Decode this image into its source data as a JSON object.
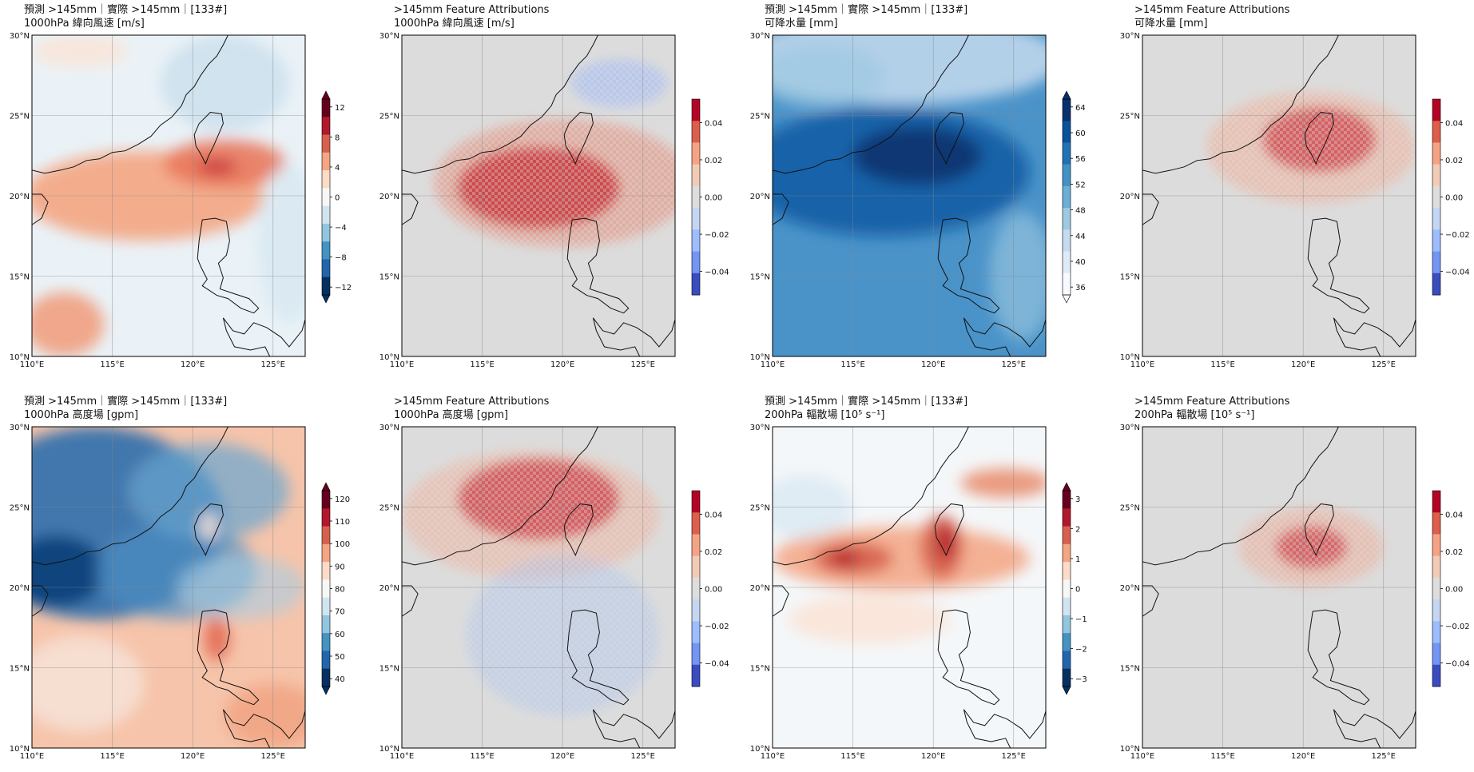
{
  "chart_data": [
    {
      "type": "heatmap",
      "title_line1": "預測 >145mm｜實際 >145mm｜[133#]",
      "title_line2": "1000hPa 緯向風速 [m/s]",
      "x_ticks": [
        "110°E",
        "115°E",
        "120°E",
        "125°E"
      ],
      "y_ticks": [
        "10°N",
        "15°N",
        "20°N",
        "25°N",
        "30°N"
      ],
      "xlim": [
        110,
        127
      ],
      "ylim": [
        10,
        30
      ],
      "colorbar_ticks": [
        "12",
        "8",
        "4",
        "0",
        "−4",
        "−8",
        "−12"
      ],
      "colormap": "RdBu_r",
      "background": "#eaf2f7",
      "blobs": [
        {
          "x": 117,
          "y": 20,
          "rx": 7.5,
          "ry": 2.8,
          "color": "#f4a582",
          "o": 0.9
        },
        {
          "x": 122,
          "y": 22,
          "rx": 3.8,
          "ry": 1.5,
          "color": "#e9785d",
          "o": 0.9
        },
        {
          "x": 121.5,
          "y": 21.8,
          "rx": 1.2,
          "ry": 0.5,
          "color": "#c93a3e",
          "o": 0.95
        },
        {
          "x": 112,
          "y": 12,
          "rx": 2.5,
          "ry": 2,
          "color": "#f1a07f",
          "o": 0.9
        },
        {
          "x": 122,
          "y": 27,
          "rx": 4,
          "ry": 3,
          "color": "#c9dfec",
          "o": 0.8
        },
        {
          "x": 126,
          "y": 17,
          "rx": 2,
          "ry": 5,
          "color": "#d7e8f1",
          "o": 0.8
        },
        {
          "x": 113,
          "y": 29,
          "rx": 3,
          "ry": 1,
          "color": "#fbe3d5",
          "o": 0.8
        }
      ]
    },
    {
      "type": "heatmap",
      "title_line1": ">145mm Feature Attributions",
      "title_line2": "1000hPa 緯向風速 [m/s]",
      "x_ticks": [
        "110°E",
        "115°E",
        "120°E",
        "125°E"
      ],
      "y_ticks": [
        "10°N",
        "15°N",
        "20°N",
        "25°N",
        "30°N"
      ],
      "xlim": [
        110,
        127
      ],
      "ylim": [
        10,
        30
      ],
      "colorbar_ticks": [
        "0.04",
        "0.02",
        "0.00",
        "−0.02",
        "−0.04"
      ],
      "colormap": "coolwarm",
      "background": "#dcdcdc",
      "blobs": [
        {
          "x": 118.5,
          "y": 20.5,
          "rx": 5,
          "ry": 2.5,
          "color": "#b40426",
          "o": 0.95
        },
        {
          "x": 120,
          "y": 20.8,
          "rx": 8,
          "ry": 4,
          "color": "#e8826a",
          "o": 0.5
        },
        {
          "x": 123.5,
          "y": 27,
          "rx": 3,
          "ry": 1.5,
          "color": "#8fb0fe",
          "o": 0.45
        }
      ]
    },
    {
      "type": "heatmap",
      "title_line1": "預測 >145mm｜實際 >145mm｜[133#]",
      "title_line2": "可降水量 [mm]",
      "x_ticks": [
        "110°E",
        "115°E",
        "120°E",
        "125°E"
      ],
      "y_ticks": [
        "10°N",
        "15°N",
        "20°N",
        "25°N",
        "30°N"
      ],
      "xlim": [
        110,
        127
      ],
      "ylim": [
        10,
        30
      ],
      "colorbar_ticks": [
        "64",
        "60",
        "56",
        "52",
        "48",
        "44",
        "40",
        "36"
      ],
      "colormap": "Blues",
      "background": "#4a93c9",
      "blobs": [
        {
          "x": 117,
          "y": 21.5,
          "rx": 9,
          "ry": 4,
          "color": "#0b5aa2",
          "o": 0.85
        },
        {
          "x": 119,
          "y": 22.5,
          "rx": 4,
          "ry": 1.8,
          "color": "#08306b",
          "o": 0.85
        },
        {
          "x": 118,
          "y": 28.5,
          "rx": 10,
          "ry": 2.8,
          "color": "#c6dbef",
          "o": 0.85
        },
        {
          "x": 113,
          "y": 27.5,
          "rx": 4,
          "ry": 2,
          "color": "#9ecae1",
          "o": 0.7
        },
        {
          "x": 125.5,
          "y": 15,
          "rx": 2,
          "ry": 4,
          "color": "#9ecae1",
          "o": 0.6
        }
      ]
    },
    {
      "type": "heatmap",
      "title_line1": ">145mm Feature Attributions",
      "title_line2": "可降水量 [mm]",
      "x_ticks": [
        "110°E",
        "115°E",
        "120°E",
        "125°E"
      ],
      "y_ticks": [
        "10°N",
        "15°N",
        "20°N",
        "25°N",
        "30°N"
      ],
      "xlim": [
        110,
        127
      ],
      "ylim": [
        10,
        30
      ],
      "colorbar_ticks": [
        "0.04",
        "0.02",
        "0.00",
        "−0.02",
        "−0.04"
      ],
      "colormap": "coolwarm",
      "background": "#dcdcdc",
      "blobs": [
        {
          "x": 121,
          "y": 23.5,
          "rx": 3.5,
          "ry": 2,
          "color": "#b40426",
          "o": 0.9
        },
        {
          "x": 120.5,
          "y": 23,
          "rx": 6.5,
          "ry": 3.5,
          "color": "#f3a78d",
          "o": 0.5
        }
      ]
    },
    {
      "type": "heatmap",
      "title_line1": "預測 >145mm｜實際 >145mm｜[133#]",
      "title_line2": "1000hPa 高度場 [gpm]",
      "x_ticks": [
        "110°E",
        "115°E",
        "120°E",
        "125°E"
      ],
      "y_ticks": [
        "10°N",
        "15°N",
        "20°N",
        "25°N",
        "30°N"
      ],
      "xlim": [
        110,
        127
      ],
      "ylim": [
        10,
        30
      ],
      "colorbar_ticks": [
        "120",
        "110",
        "100",
        "90",
        "80",
        "70",
        "60",
        "50",
        "40"
      ],
      "colormap": "RdBu_r",
      "background": "#f6c4aa",
      "blobs": [
        {
          "x": 114,
          "y": 24,
          "rx": 8,
          "ry": 6,
          "color": "#2f6ead",
          "o": 0.9
        },
        {
          "x": 111.5,
          "y": 21,
          "rx": 3,
          "ry": 2.2,
          "color": "#0c3f79",
          "o": 0.9
        },
        {
          "x": 119,
          "y": 21,
          "rx": 5,
          "ry": 3,
          "color": "#4d8fc3",
          "o": 0.7
        },
        {
          "x": 121,
          "y": 26,
          "rx": 5,
          "ry": 3,
          "color": "#6aa5d0",
          "o": 0.7
        },
        {
          "x": 123,
          "y": 20,
          "rx": 4,
          "ry": 2,
          "color": "#a9cde3",
          "o": 0.6
        },
        {
          "x": 113,
          "y": 14,
          "rx": 4,
          "ry": 3,
          "color": "#f7f7f7",
          "o": 0.5
        },
        {
          "x": 121.5,
          "y": 16.8,
          "rx": 0.8,
          "ry": 1.4,
          "color": "#e36b55",
          "o": 0.9
        },
        {
          "x": 121,
          "y": 23.8,
          "rx": 0.5,
          "ry": 0.9,
          "color": "#fbe5d7",
          "o": 0.9
        },
        {
          "x": 125,
          "y": 12,
          "rx": 3,
          "ry": 2,
          "color": "#f09c7b",
          "o": 0.7
        }
      ]
    },
    {
      "type": "heatmap",
      "title_line1": ">145mm Feature Attributions",
      "title_line2": "1000hPa 高度場 [gpm]",
      "x_ticks": [
        "110°E",
        "115°E",
        "120°E",
        "125°E"
      ],
      "y_ticks": [
        "10°N",
        "15°N",
        "20°N",
        "25°N",
        "30°N"
      ],
      "xlim": [
        110,
        127
      ],
      "ylim": [
        10,
        30
      ],
      "colorbar_ticks": [
        "0.04",
        "0.02",
        "0.00",
        "−0.02",
        "−0.04"
      ],
      "colormap": "coolwarm",
      "background": "#dcdcdc",
      "blobs": [
        {
          "x": 118.5,
          "y": 25.5,
          "rx": 5,
          "ry": 2.5,
          "color": "#b40426",
          "o": 0.85
        },
        {
          "x": 118,
          "y": 24.5,
          "rx": 8,
          "ry": 4,
          "color": "#f4a78c",
          "o": 0.45
        },
        {
          "x": 120,
          "y": 17,
          "rx": 6,
          "ry": 5,
          "color": "#a6c1f2",
          "o": 0.4
        }
      ]
    },
    {
      "type": "heatmap",
      "title_line1": "預測 >145mm｜實際 >145mm｜[133#]",
      "title_line2": "200hPa 輻散場 [10⁵ s⁻¹]",
      "x_ticks": [
        "110°E",
        "115°E",
        "120°E",
        "125°E"
      ],
      "y_ticks": [
        "10°N",
        "15°N",
        "20°N",
        "25°N",
        "30°N"
      ],
      "xlim": [
        110,
        127
      ],
      "ylim": [
        10,
        30
      ],
      "colorbar_ticks": [
        "3",
        "2",
        "1",
        "0",
        "−1",
        "−2",
        "−3"
      ],
      "colormap": "RdBu_r",
      "background": "#f4f7f9",
      "blobs": [
        {
          "x": 118,
          "y": 21.8,
          "rx": 8,
          "ry": 2,
          "color": "#f4a582",
          "o": 0.85
        },
        {
          "x": 115,
          "y": 21.8,
          "rx": 2.5,
          "ry": 1,
          "color": "#d6604d",
          "o": 0.9
        },
        {
          "x": 114.5,
          "y": 21.8,
          "rx": 0.9,
          "ry": 0.5,
          "color": "#b2182b",
          "o": 0.9
        },
        {
          "x": 120.5,
          "y": 22.5,
          "rx": 1.3,
          "ry": 2,
          "color": "#d6604d",
          "o": 0.9
        },
        {
          "x": 120.8,
          "y": 22.8,
          "rx": 0.6,
          "ry": 1.1,
          "color": "#b2182b",
          "o": 0.9
        },
        {
          "x": 124.5,
          "y": 26.5,
          "rx": 2.8,
          "ry": 0.9,
          "color": "#e98a6a",
          "o": 0.85
        },
        {
          "x": 116,
          "y": 18,
          "rx": 5,
          "ry": 1.5,
          "color": "#fddbc7",
          "o": 0.6
        },
        {
          "x": 112,
          "y": 25,
          "rx": 3,
          "ry": 2,
          "color": "#d1e5f0",
          "o": 0.6
        }
      ]
    },
    {
      "type": "heatmap",
      "title_line1": ">145mm Feature Attributions",
      "title_line2": "200hPa 輻散場 [10⁵ s⁻¹]",
      "x_ticks": [
        "110°E",
        "115°E",
        "120°E",
        "125°E"
      ],
      "y_ticks": [
        "10°N",
        "15°N",
        "20°N",
        "25°N",
        "30°N"
      ],
      "xlim": [
        110,
        127
      ],
      "ylim": [
        10,
        30
      ],
      "colorbar_ticks": [
        "0.04",
        "0.02",
        "0.00",
        "−0.02",
        "−0.04"
      ],
      "colormap": "coolwarm",
      "background": "#dcdcdc",
      "blobs": [
        {
          "x": 120.5,
          "y": 22.5,
          "rx": 2.2,
          "ry": 1.3,
          "color": "#b40426",
          "o": 0.85
        },
        {
          "x": 120.5,
          "y": 22.5,
          "rx": 4.5,
          "ry": 2.5,
          "color": "#f1a68d",
          "o": 0.5
        }
      ]
    }
  ]
}
